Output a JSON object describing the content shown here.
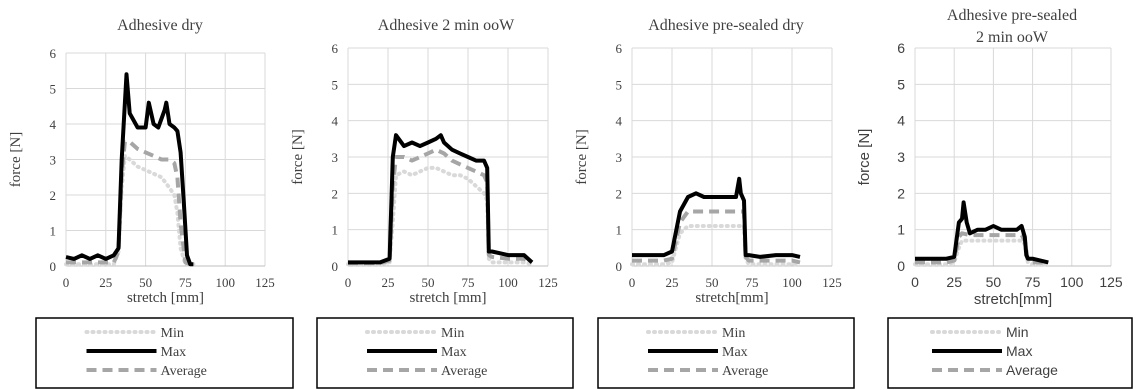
{
  "figure": {
    "colors": {
      "min": "#d9d9d9",
      "max": "#000000",
      "average": "#a6a6a6",
      "grid": "#d9d9d9",
      "text": "#404040"
    },
    "legend": {
      "min": "Min",
      "max": "Max",
      "average": "Average"
    }
  },
  "chart_data": [
    {
      "type": "line",
      "title_lines": [
        "Adhesive dry"
      ],
      "xlabel": "stretch [mm]",
      "ylabel": "force [N]",
      "xlim": [
        0,
        125
      ],
      "ylim": [
        0,
        6
      ],
      "xticks": [
        0,
        25,
        50,
        75,
        100,
        125
      ],
      "yticks": [
        0,
        1,
        2,
        3,
        4,
        5,
        6
      ],
      "grid": true,
      "legend_position": "bottom",
      "series": [
        {
          "name": "Min",
          "style": "dotted",
          "x": [
            0,
            10,
            20,
            30,
            33,
            35,
            37,
            40,
            45,
            50,
            55,
            60,
            65,
            68,
            70,
            72,
            75,
            78,
            80
          ],
          "y": [
            0.05,
            0.05,
            0.05,
            0.05,
            0.4,
            2.2,
            3.1,
            3.0,
            2.8,
            2.7,
            2.6,
            2.5,
            2.2,
            2.0,
            1.5,
            0.5,
            0.05,
            0.05,
            0.05
          ]
        },
        {
          "name": "Max",
          "style": "solid",
          "x": [
            0,
            5,
            10,
            15,
            20,
            25,
            30,
            33,
            35,
            37,
            38,
            40,
            45,
            50,
            52,
            55,
            58,
            62,
            63,
            65,
            68,
            70,
            72,
            74,
            76,
            78,
            80
          ],
          "y": [
            0.25,
            0.2,
            0.3,
            0.2,
            0.3,
            0.2,
            0.3,
            0.5,
            3.0,
            4.6,
            5.4,
            4.3,
            3.9,
            3.9,
            4.6,
            4.0,
            3.9,
            4.4,
            4.6,
            4.0,
            3.9,
            3.8,
            3.2,
            1.8,
            0.3,
            0.05,
            0.05
          ]
        },
        {
          "name": "Average",
          "style": "dashed",
          "x": [
            0,
            10,
            20,
            30,
            33,
            35,
            37,
            40,
            45,
            50,
            55,
            60,
            65,
            68,
            70,
            72,
            75,
            78,
            80
          ],
          "y": [
            0.1,
            0.1,
            0.1,
            0.1,
            0.4,
            2.6,
            3.5,
            3.5,
            3.3,
            3.2,
            3.1,
            3.0,
            3.0,
            2.9,
            2.5,
            1.2,
            0.1,
            0.05,
            0.05
          ]
        }
      ]
    },
    {
      "type": "line",
      "title_lines": [
        "Adhesive 2 min ooW"
      ],
      "xlabel": "stretch [mm]",
      "ylabel": "force [N]",
      "xlim": [
        0,
        125
      ],
      "ylim": [
        0,
        6
      ],
      "xticks": [
        0,
        25,
        50,
        75,
        100,
        125
      ],
      "yticks": [
        0,
        1,
        2,
        3,
        4,
        5,
        6
      ],
      "grid": true,
      "legend_position": "bottom",
      "series": [
        {
          "name": "Min",
          "style": "dotted",
          "x": [
            0,
            10,
            20,
            26,
            28,
            30,
            35,
            40,
            45,
            50,
            55,
            60,
            65,
            70,
            75,
            80,
            85,
            87,
            88,
            90,
            100,
            110,
            115
          ],
          "y": [
            0.05,
            0.05,
            0.05,
            0.1,
            1.2,
            2.5,
            2.6,
            2.5,
            2.6,
            2.7,
            2.7,
            2.6,
            2.5,
            2.5,
            2.4,
            2.2,
            2.0,
            1.8,
            0.2,
            0.1,
            0.1,
            0.1,
            0.05
          ]
        },
        {
          "name": "Max",
          "style": "solid",
          "x": [
            0,
            10,
            20,
            26,
            28,
            30,
            35,
            40,
            45,
            50,
            55,
            58,
            60,
            65,
            70,
            75,
            80,
            85,
            87,
            88,
            90,
            100,
            110,
            115
          ],
          "y": [
            0.1,
            0.1,
            0.1,
            0.2,
            3.0,
            3.6,
            3.3,
            3.4,
            3.3,
            3.4,
            3.5,
            3.6,
            3.4,
            3.2,
            3.1,
            3.0,
            2.9,
            2.9,
            2.7,
            0.4,
            0.4,
            0.3,
            0.3,
            0.1
          ]
        },
        {
          "name": "Average",
          "style": "dashed",
          "x": [
            0,
            10,
            20,
            26,
            28,
            30,
            35,
            40,
            45,
            50,
            55,
            60,
            65,
            70,
            75,
            80,
            85,
            87,
            88,
            90,
            100,
            110,
            115
          ],
          "y": [
            0.08,
            0.08,
            0.08,
            0.15,
            2.2,
            3.0,
            3.0,
            2.9,
            3.0,
            3.1,
            3.2,
            3.1,
            2.9,
            2.8,
            2.7,
            2.6,
            2.5,
            2.3,
            0.3,
            0.25,
            0.2,
            0.2,
            0.1
          ]
        }
      ]
    },
    {
      "type": "line",
      "title_lines": [
        "Adhesive pre-sealed dry"
      ],
      "xlabel": "stretch[mm]",
      "ylabel": "force [N]",
      "xlim": [
        0,
        125
      ],
      "ylim": [
        0,
        6
      ],
      "xticks": [
        0,
        25,
        50,
        75,
        100,
        125
      ],
      "yticks": [
        0,
        1,
        2,
        3,
        4,
        5,
        6
      ],
      "grid": true,
      "legend_position": "bottom",
      "series": [
        {
          "name": "Min",
          "style": "dotted",
          "x": [
            0,
            10,
            20,
            25,
            30,
            35,
            40,
            50,
            60,
            65,
            70,
            71,
            73,
            80,
            90,
            100,
            105
          ],
          "y": [
            0.05,
            0.05,
            0.05,
            0.1,
            0.9,
            1.1,
            1.1,
            1.1,
            1.1,
            1.1,
            1.1,
            0.2,
            0.05,
            0.05,
            0.05,
            0.05,
            0.05
          ]
        },
        {
          "name": "Max",
          "style": "solid",
          "x": [
            0,
            10,
            20,
            25,
            30,
            35,
            40,
            45,
            50,
            55,
            60,
            65,
            67,
            68,
            70,
            71,
            73,
            80,
            90,
            100,
            105
          ],
          "y": [
            0.3,
            0.3,
            0.3,
            0.4,
            1.5,
            1.9,
            2.0,
            1.9,
            1.9,
            1.9,
            1.9,
            1.9,
            2.4,
            2.0,
            1.8,
            0.3,
            0.3,
            0.25,
            0.3,
            0.3,
            0.25
          ]
        },
        {
          "name": "Average",
          "style": "dashed",
          "x": [
            0,
            10,
            20,
            25,
            30,
            35,
            40,
            50,
            60,
            65,
            70,
            71,
            73,
            80,
            90,
            100,
            105
          ],
          "y": [
            0.15,
            0.15,
            0.15,
            0.2,
            1.2,
            1.5,
            1.5,
            1.5,
            1.5,
            1.5,
            1.5,
            0.25,
            0.15,
            0.15,
            0.15,
            0.15,
            0.1
          ]
        }
      ]
    },
    {
      "type": "line",
      "title_lines": [
        "Adhesive pre-sealed",
        "2 min ooW"
      ],
      "xlabel": "stretch[mm]",
      "ylabel": "force [N]",
      "xlim": [
        0,
        125
      ],
      "ylim": [
        0,
        6
      ],
      "xticks": [
        0,
        25,
        50,
        75,
        100,
        125
      ],
      "yticks": [
        0,
        1,
        2,
        3,
        4,
        5,
        6
      ],
      "grid": true,
      "legend_position": "bottom",
      "series": [
        {
          "name": "Min",
          "style": "dotted",
          "x": [
            0,
            10,
            20,
            25,
            28,
            30,
            35,
            40,
            50,
            60,
            68,
            70,
            72,
            75,
            80,
            85
          ],
          "y": [
            0.05,
            0.05,
            0.05,
            0.1,
            0.5,
            0.7,
            0.7,
            0.7,
            0.7,
            0.7,
            0.7,
            0.6,
            0.1,
            0.05,
            0.05,
            0.05
          ]
        },
        {
          "name": "Max",
          "style": "solid",
          "x": [
            0,
            10,
            20,
            25,
            28,
            30,
            31,
            33,
            35,
            40,
            45,
            50,
            55,
            60,
            65,
            68,
            70,
            71,
            72,
            75,
            80,
            85
          ],
          "y": [
            0.2,
            0.2,
            0.2,
            0.25,
            1.2,
            1.3,
            1.75,
            1.2,
            0.9,
            1.0,
            1.0,
            1.1,
            1.0,
            1.0,
            1.0,
            1.1,
            0.8,
            0.3,
            0.2,
            0.2,
            0.15,
            0.1
          ]
        },
        {
          "name": "Average",
          "style": "dashed",
          "x": [
            0,
            10,
            20,
            25,
            28,
            30,
            35,
            40,
            50,
            60,
            68,
            70,
            72,
            75,
            80,
            85
          ],
          "y": [
            0.1,
            0.1,
            0.1,
            0.15,
            0.8,
            0.9,
            0.85,
            0.85,
            0.85,
            0.85,
            0.85,
            0.7,
            0.15,
            0.1,
            0.1,
            0.05
          ]
        }
      ]
    }
  ]
}
